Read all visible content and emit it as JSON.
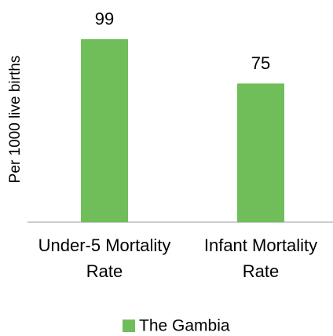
{
  "chart_data": {
    "type": "bar",
    "categories": [
      "Under-5 Mortality Rate",
      "Infant Mortality Rate"
    ],
    "values": [
      99,
      75
    ],
    "color": "#6fbe5a",
    "ylabel": "Per 1000 live births",
    "ylim": [
      0,
      100
    ],
    "legend": {
      "position": "bottom"
    },
    "series_name": "The Gambia"
  }
}
